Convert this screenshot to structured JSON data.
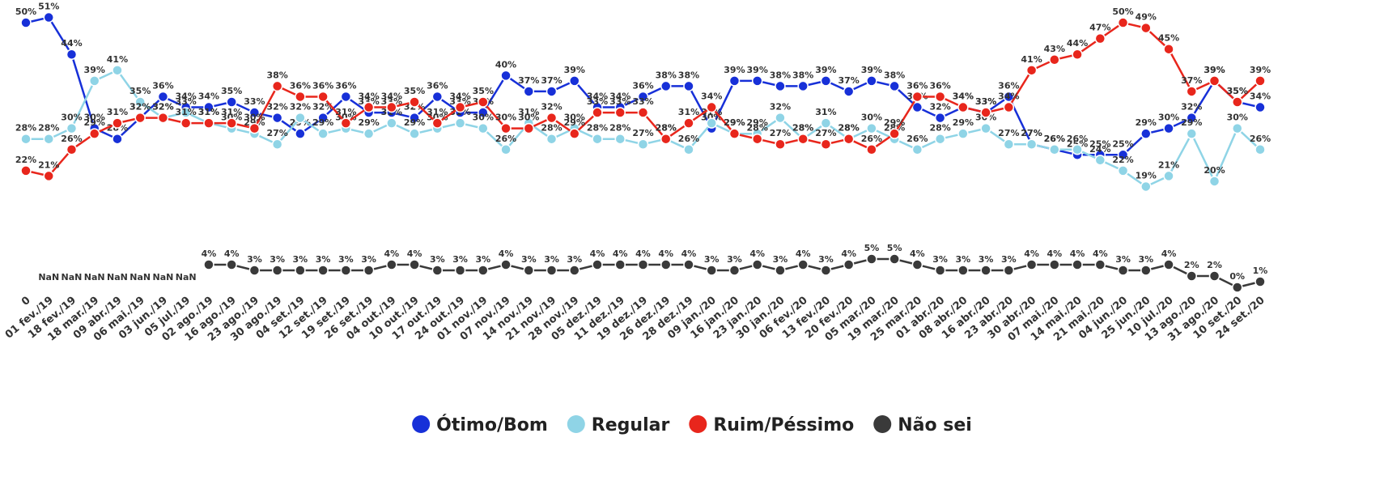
{
  "chart_data": {
    "type": "line",
    "categories": [
      "0",
      "01 fev./19",
      "18 fev./19",
      "18 mar./19",
      "09 abr./19",
      "06 mai./19",
      "03 jun./19",
      "05 jul./19",
      "02 ago./19",
      "16 ago./19",
      "23 ago./19",
      "30 ago./19",
      "04 set./19",
      "12 set./19",
      "19 set./19",
      "26 set./19",
      "04 out./19",
      "10 out./19",
      "17 out./19",
      "24 out./19",
      "01 nov./19",
      "07 nov./19",
      "14 nov./19",
      "21 nov./19",
      "28 nov./19",
      "05 dez./19",
      "11 dez./19",
      "19 dez./19",
      "26 dez./19",
      "28 dez./19",
      "09 jan./20",
      "16 jan./20",
      "23 jan./20",
      "30 jan./20",
      "06 fev./20",
      "13 fev./20",
      "20 fev./20",
      "05 mar./20",
      "19 mar./20",
      "25 mar./20",
      "01 abr./20",
      "08 abr./20",
      "16 abr./20",
      "23 abr./20",
      "30 abr./20",
      "07 mai./20",
      "14 mai./20",
      "21 mai./20",
      "04 jun./20",
      "25 jun./20",
      "10 jul./20",
      "13 ago./20",
      "31 ago./20",
      "10 set./20",
      "24 set./20"
    ],
    "ylim": [
      18,
      52
    ],
    "y2lim": [
      0,
      5
    ],
    "series": [
      {
        "name": "Ótimo/Bom",
        "color": "#1730d8",
        "values": [
          50,
          51,
          44,
          30,
          28,
          32,
          36,
          34,
          34,
          35,
          33,
          32,
          29,
          32,
          36,
          33,
          33,
          32,
          36,
          33,
          33,
          40,
          37,
          37,
          39,
          34,
          34,
          36,
          38,
          38,
          30,
          39,
          39,
          38,
          38,
          39,
          37,
          39,
          38,
          34,
          32,
          34,
          33,
          36,
          27,
          26,
          25,
          25,
          25,
          29,
          30,
          32,
          39,
          35,
          34
        ],
        "value_labels": [
          "50%",
          "51%",
          "44%",
          "30%",
          "28%",
          "32%",
          "36%",
          "34%",
          "34%",
          "35%",
          "33%",
          "32%",
          "29%",
          "32%",
          "36%",
          "33%",
          "33%",
          "32%",
          "36%",
          "33%",
          "33%",
          "40%",
          "37%",
          "37%",
          "39%",
          "34%",
          "34%",
          "36%",
          "38%",
          "38%",
          "30%",
          "39%",
          "39%",
          "38%",
          "38%",
          "39%",
          "37%",
          "39%",
          "38%",
          "34%",
          "32%",
          "34%",
          "33%",
          "36%",
          "27%",
          "26%",
          "25%",
          "25%",
          "25%",
          "29%",
          "30%",
          "32%",
          "39%",
          "35%",
          "34%"
        ]
      },
      {
        "name": "Regular",
        "color": "#8fd4e6",
        "values": [
          28,
          28,
          30,
          39,
          41,
          35,
          32,
          33,
          31,
          30,
          29,
          27,
          32,
          29,
          30,
          29,
          31,
          29,
          30,
          31,
          30,
          26,
          31,
          28,
          30,
          28,
          28,
          27,
          28,
          26,
          31,
          29,
          29,
          32,
          28,
          31,
          28,
          30,
          28,
          26,
          28,
          29,
          30,
          27,
          27,
          26,
          26,
          24,
          22,
          19,
          21,
          29,
          20,
          30,
          26
        ],
        "value_labels": [
          "28%",
          "28%",
          "30%",
          "39%",
          "41%",
          "35%",
          "32%",
          "33%",
          "31%",
          "30%",
          "29%",
          "27%",
          "32%",
          "29%",
          "30%",
          "29%",
          "31%",
          "29%",
          "30%",
          "31%",
          "30%",
          "26%",
          "31%",
          "28%",
          "30%",
          "28%",
          "28%",
          "27%",
          "28%",
          "26%",
          "31%",
          "29%",
          "29%",
          "32%",
          "28%",
          "31%",
          "28%",
          "30%",
          "28%",
          "26%",
          "28%",
          "29%",
          "30%",
          "27%",
          "27%",
          "26%",
          "26%",
          "24%",
          "22%",
          "19%",
          "21%",
          "29%",
          "20%",
          "30%",
          "26%"
        ]
      },
      {
        "name": "Ruim/Péssimo",
        "color": "#e8261c",
        "values": [
          22,
          21,
          26,
          29,
          31,
          32,
          32,
          31,
          31,
          31,
          30,
          38,
          36,
          36,
          31,
          34,
          34,
          35,
          31,
          34,
          35,
          30,
          30,
          32,
          29,
          33,
          33,
          33,
          28,
          31,
          34,
          29,
          28,
          27,
          28,
          27,
          28,
          26,
          29,
          36,
          36,
          34,
          33,
          34,
          41,
          43,
          44,
          47,
          50,
          49,
          45,
          37,
          39,
          35,
          39
        ],
        "value_labels": [
          "22%",
          "21%",
          "26%",
          "29%",
          "31%",
          "32%",
          "32%",
          "31%",
          "31%",
          "31%",
          "30%",
          "38%",
          "36%",
          "36%",
          "31%",
          "34%",
          "34%",
          "35%",
          "31%",
          "34%",
          "35%",
          "30%",
          "30%",
          "32%",
          "29%",
          "33%",
          "33%",
          "33%",
          "28%",
          "31%",
          "34%",
          "29%",
          "28%",
          "27%",
          "28%",
          "27%",
          "28%",
          "26%",
          "29%",
          "36%",
          "36%",
          "34%",
          "33%",
          "34%",
          "41%",
          "43%",
          "44%",
          "47%",
          "50%",
          "49%",
          "45%",
          "37%",
          "39%",
          "35%",
          "39%"
        ]
      },
      {
        "name": "Não sei",
        "color": "#3a3a3a",
        "axis": "y2",
        "values": [
          null,
          null,
          null,
          null,
          null,
          null,
          null,
          null,
          4,
          4,
          3,
          3,
          3,
          3,
          3,
          3,
          4,
          4,
          3,
          3,
          3,
          4,
          3,
          3,
          3,
          4,
          4,
          4,
          4,
          4,
          3,
          3,
          4,
          3,
          4,
          3,
          4,
          5,
          5,
          4,
          3,
          3,
          3,
          3,
          4,
          4,
          4,
          4,
          3,
          3,
          4,
          2,
          2,
          0,
          1
        ],
        "value_labels": [
          null,
          "NaN",
          "NaN",
          "NaN",
          "NaN",
          "NaN",
          "NaN",
          "NaN",
          "4%",
          "4%",
          "3%",
          "3%",
          "3%",
          "3%",
          "3%",
          "3%",
          "4%",
          "4%",
          "3%",
          "3%",
          "3%",
          "4%",
          "3%",
          "3%",
          "3%",
          "4%",
          "4%",
          "4%",
          "4%",
          "4%",
          "3%",
          "3%",
          "4%",
          "3%",
          "4%",
          "3%",
          "4%",
          "5%",
          "5%",
          "4%",
          "3%",
          "3%",
          "3%",
          "3%",
          "4%",
          "4%",
          "4%",
          "4%",
          "3%",
          "3%",
          "4%",
          "2%",
          "2%",
          "0%",
          "1%"
        ]
      }
    ]
  }
}
